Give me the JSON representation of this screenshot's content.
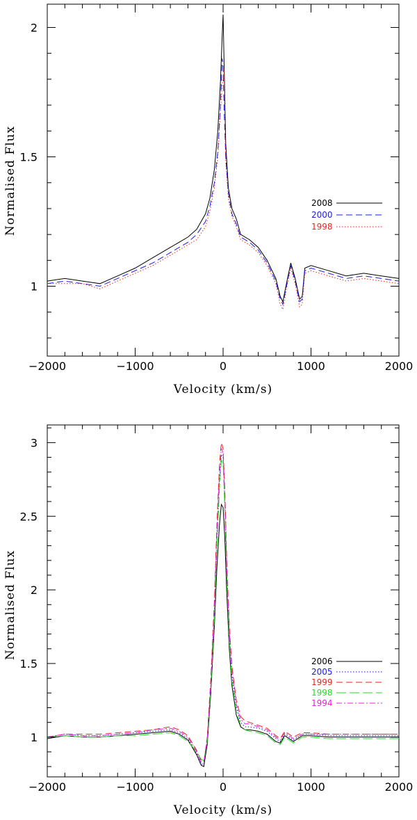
{
  "chart_data": [
    {
      "type": "line",
      "xlabel": "Velocity (km/s)",
      "ylabel": "Normalised Flux",
      "xlim": [
        -2000,
        2000
      ],
      "ylim": [
        0.73,
        2.09
      ],
      "xticks": [
        -2000,
        -1000,
        0,
        1000,
        2000
      ],
      "xtick_labels": [
        "−2000",
        "−1000",
        "0",
        "1000",
        "2000"
      ],
      "yticks": [
        1,
        1.5,
        2
      ],
      "ytick_labels": [
        "1",
        "1.5",
        "2"
      ],
      "legend_position": "right-middle",
      "series": [
        {
          "name": "2008",
          "color": "#000000",
          "dash": "solid",
          "x": [
            -2000,
            -1800,
            -1600,
            -1400,
            -1200,
            -1000,
            -800,
            -600,
            -400,
            -300,
            -200,
            -150,
            -100,
            -60,
            -30,
            -10,
            0,
            10,
            30,
            60,
            100,
            150,
            200,
            300,
            400,
            500,
            600,
            650,
            680,
            720,
            770,
            820,
            870,
            900,
            930,
            1000,
            1200,
            1400,
            1600,
            1800,
            2000
          ],
          "y": [
            1.02,
            1.03,
            1.02,
            1.01,
            1.04,
            1.07,
            1.11,
            1.15,
            1.19,
            1.22,
            1.28,
            1.34,
            1.45,
            1.6,
            1.79,
            1.97,
            2.05,
            1.88,
            1.55,
            1.38,
            1.3,
            1.26,
            1.2,
            1.18,
            1.15,
            1.1,
            1.03,
            0.96,
            0.94,
            1.01,
            1.09,
            1.03,
            0.95,
            0.96,
            1.07,
            1.08,
            1.06,
            1.04,
            1.05,
            1.04,
            1.03
          ]
        },
        {
          "name": "2000",
          "color": "#1a1aee",
          "dash": "dashed",
          "x": [
            -2000,
            -1800,
            -1600,
            -1400,
            -1200,
            -1000,
            -800,
            -600,
            -400,
            -300,
            -200,
            -150,
            -100,
            -60,
            -30,
            -10,
            0,
            10,
            30,
            60,
            100,
            150,
            200,
            300,
            400,
            500,
            600,
            650,
            680,
            720,
            770,
            820,
            870,
            900,
            930,
            1000,
            1200,
            1400,
            1600,
            1800,
            2000
          ],
          "y": [
            1.01,
            1.02,
            1.01,
            1.0,
            1.03,
            1.06,
            1.09,
            1.13,
            1.17,
            1.2,
            1.25,
            1.31,
            1.4,
            1.52,
            1.7,
            1.88,
            1.85,
            1.7,
            1.5,
            1.36,
            1.28,
            1.24,
            1.19,
            1.17,
            1.14,
            1.09,
            1.02,
            0.95,
            0.93,
            1.0,
            1.08,
            1.02,
            0.94,
            0.95,
            1.06,
            1.07,
            1.05,
            1.03,
            1.04,
            1.03,
            1.02
          ]
        },
        {
          "name": "1998",
          "color": "#ee2222",
          "dash": "dotted",
          "x": [
            -2000,
            -1800,
            -1600,
            -1400,
            -1200,
            -1000,
            -800,
            -600,
            -400,
            -300,
            -200,
            -150,
            -100,
            -60,
            -30,
            -10,
            0,
            10,
            30,
            60,
            100,
            150,
            200,
            300,
            400,
            500,
            600,
            650,
            680,
            720,
            770,
            820,
            870,
            900,
            930,
            1000,
            1200,
            1400,
            1600,
            1800,
            2000
          ],
          "y": [
            1.01,
            1.01,
            1.01,
            0.99,
            1.02,
            1.05,
            1.08,
            1.12,
            1.16,
            1.18,
            1.23,
            1.29,
            1.38,
            1.5,
            1.68,
            1.78,
            1.8,
            1.84,
            1.48,
            1.34,
            1.27,
            1.23,
            1.18,
            1.16,
            1.13,
            1.08,
            1.01,
            0.93,
            0.91,
            0.99,
            1.07,
            1.01,
            0.92,
            0.93,
            1.05,
            1.06,
            1.04,
            1.02,
            1.03,
            1.02,
            1.01
          ]
        }
      ]
    },
    {
      "type": "line",
      "xlabel": "Velocity (km/s)",
      "ylabel": "Normalised Flux",
      "xlim": [
        -2000,
        2000
      ],
      "ylim": [
        0.73,
        3.12
      ],
      "xticks": [
        -2000,
        -1000,
        0,
        1000,
        2000
      ],
      "xtick_labels": [
        "−2000",
        "−1000",
        "0",
        "1000",
        "2000"
      ],
      "yticks": [
        1,
        1.5,
        2,
        2.5,
        3
      ],
      "ytick_labels": [
        "1",
        "1.5",
        "2",
        "2.5",
        "3"
      ],
      "legend_position": "bottom-right",
      "series": [
        {
          "name": "2006",
          "color": "#000000",
          "dash": "solid",
          "x": [
            -2000,
            -1800,
            -1600,
            -1400,
            -1200,
            -1000,
            -800,
            -600,
            -500,
            -400,
            -300,
            -250,
            -220,
            -180,
            -140,
            -100,
            -70,
            -40,
            -20,
            0,
            20,
            40,
            70,
            100,
            150,
            200,
            250,
            300,
            400,
            500,
            600,
            650,
            700,
            800,
            900,
            1000,
            1200,
            1400,
            1600,
            1800,
            2000
          ],
          "y": [
            0.99,
            1.01,
            1.0,
            1.0,
            1.01,
            1.02,
            1.03,
            1.04,
            1.02,
            0.98,
            0.88,
            0.81,
            0.8,
            0.95,
            1.3,
            1.75,
            2.15,
            2.45,
            2.58,
            2.56,
            2.35,
            2.0,
            1.6,
            1.35,
            1.15,
            1.07,
            1.05,
            1.05,
            1.04,
            1.02,
            0.97,
            0.96,
            1.01,
            0.97,
            1.01,
            1.01,
            1.0,
            1.0,
            1.0,
            1.0,
            1.0
          ]
        },
        {
          "name": "2005",
          "color": "#1a1aee",
          "dash": "dotted",
          "x": [
            -2000,
            -1800,
            -1600,
            -1400,
            -1200,
            -1000,
            -800,
            -600,
            -500,
            -400,
            -300,
            -250,
            -220,
            -180,
            -140,
            -100,
            -70,
            -40,
            -20,
            0,
            20,
            40,
            70,
            100,
            150,
            200,
            250,
            300,
            400,
            500,
            600,
            650,
            700,
            800,
            900,
            1000,
            1200,
            1400,
            1600,
            1800,
            2000
          ],
          "y": [
            1.0,
            1.02,
            1.01,
            1.01,
            1.02,
            1.03,
            1.04,
            1.05,
            1.03,
            0.99,
            0.89,
            0.82,
            0.81,
            0.98,
            1.35,
            1.85,
            2.35,
            2.75,
            2.92,
            2.9,
            2.6,
            2.15,
            1.7,
            1.42,
            1.2,
            1.1,
            1.07,
            1.07,
            1.06,
            1.04,
            0.99,
            0.97,
            1.02,
            0.98,
            1.02,
            1.02,
            1.01,
            1.01,
            1.01,
            1.01,
            1.01
          ]
        },
        {
          "name": "1999",
          "color": "#ee2222",
          "dash": "dashed",
          "x": [
            -2000,
            -1800,
            -1600,
            -1400,
            -1200,
            -1000,
            -800,
            -600,
            -500,
            -400,
            -300,
            -250,
            -220,
            -180,
            -140,
            -100,
            -70,
            -40,
            -20,
            0,
            20,
            40,
            70,
            100,
            150,
            200,
            250,
            300,
            400,
            500,
            600,
            650,
            700,
            800,
            900,
            1000,
            1200,
            1400,
            1600,
            1800,
            2000
          ],
          "y": [
            1.0,
            1.02,
            1.02,
            1.02,
            1.03,
            1.04,
            1.05,
            1.07,
            1.05,
            1.01,
            0.91,
            0.84,
            0.83,
            1.0,
            1.4,
            1.92,
            2.45,
            2.86,
            3.0,
            2.96,
            2.68,
            2.22,
            1.76,
            1.48,
            1.25,
            1.14,
            1.11,
            1.1,
            1.08,
            1.06,
            1.01,
            0.99,
            1.04,
            1.0,
            1.03,
            1.03,
            1.02,
            1.02,
            1.02,
            1.02,
            1.02
          ]
        },
        {
          "name": "1998",
          "color": "#22dd22",
          "dash": "longdash",
          "x": [
            -2000,
            -1800,
            -1600,
            -1400,
            -1200,
            -1000,
            -800,
            -600,
            -500,
            -400,
            -300,
            -250,
            -220,
            -180,
            -140,
            -100,
            -70,
            -40,
            -20,
            0,
            20,
            40,
            70,
            100,
            150,
            200,
            250,
            300,
            400,
            500,
            600,
            650,
            700,
            800,
            900,
            1000,
            1200,
            1400,
            1600,
            1800,
            2000
          ],
          "y": [
            1.0,
            1.01,
            1.0,
            1.0,
            1.01,
            1.01,
            1.02,
            1.03,
            1.01,
            0.97,
            0.9,
            0.85,
            0.84,
            0.97,
            1.33,
            1.8,
            2.28,
            2.7,
            2.88,
            2.86,
            2.55,
            2.1,
            1.65,
            1.38,
            1.17,
            1.08,
            1.05,
            1.04,
            1.03,
            1.01,
            0.96,
            0.95,
            1.0,
            0.96,
            1.0,
            1.0,
            0.99,
            0.99,
            0.99,
            0.99,
            0.99
          ]
        },
        {
          "name": "1994",
          "color": "#dd22dd",
          "dash": "dashdot",
          "x": [
            -2000,
            -1800,
            -1600,
            -1400,
            -1200,
            -1000,
            -800,
            -600,
            -500,
            -400,
            -300,
            -250,
            -220,
            -180,
            -140,
            -100,
            -70,
            -40,
            -20,
            0,
            20,
            40,
            70,
            100,
            150,
            200,
            250,
            300,
            400,
            500,
            600,
            650,
            700,
            800,
            900,
            1000,
            1200,
            1400,
            1600,
            1800,
            2000
          ],
          "y": [
            1.0,
            1.02,
            1.01,
            1.01,
            1.02,
            1.03,
            1.05,
            1.06,
            1.04,
            1.0,
            0.9,
            0.83,
            0.82,
            0.99,
            1.37,
            1.88,
            2.4,
            2.8,
            2.96,
            2.93,
            2.64,
            2.18,
            1.72,
            1.45,
            1.22,
            1.12,
            1.09,
            1.09,
            1.07,
            1.05,
            1.0,
            0.98,
            1.03,
            0.99,
            1.02,
            1.02,
            1.02,
            1.02,
            1.02,
            1.02,
            1.02
          ]
        }
      ]
    }
  ]
}
